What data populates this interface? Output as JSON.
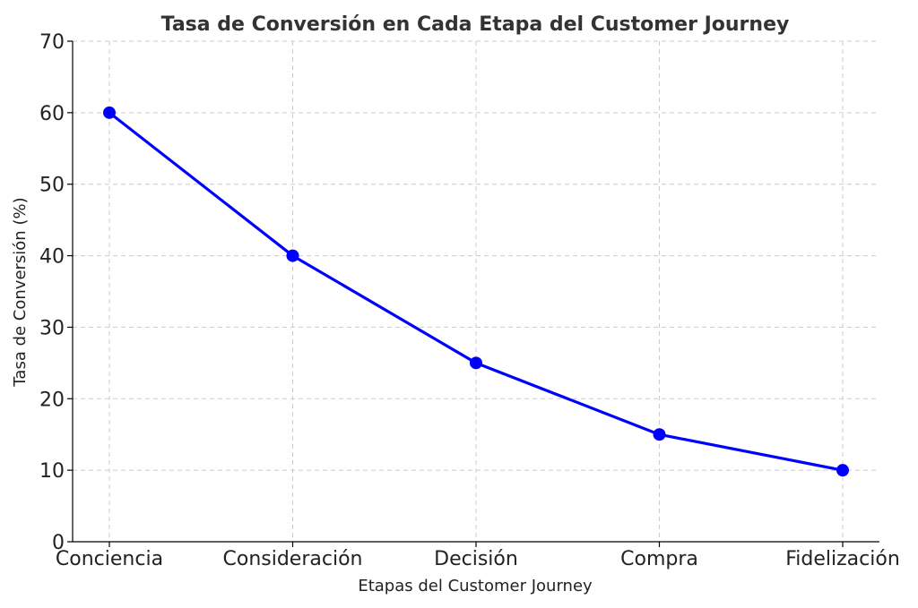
{
  "chart_data": {
    "type": "line",
    "title": "Tasa de Conversión en Cada Etapa del Customer Journey",
    "xlabel": "Etapas del Customer Journey",
    "ylabel": "Tasa de Conversión (%)",
    "categories": [
      "Conciencia",
      "Consideración",
      "Decisión",
      "Compra",
      "Fidelización"
    ],
    "series": [
      {
        "values": [
          60,
          40,
          25,
          15,
          10
        ],
        "color": "#0000ff"
      }
    ],
    "yticks": [
      "0",
      "10",
      "20",
      "30",
      "40",
      "50",
      "60",
      "70"
    ],
    "ylim": [
      0,
      70
    ],
    "grid": true,
    "marker": "circle"
  }
}
